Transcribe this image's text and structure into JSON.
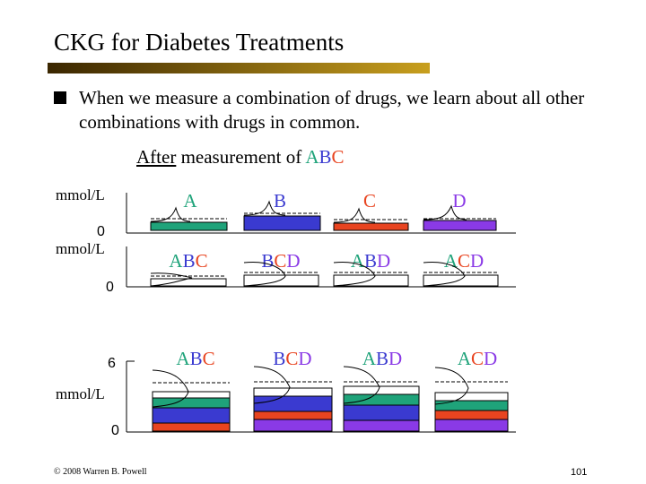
{
  "slide": {
    "title": "CKG for Diabetes Treatments",
    "bullet": "When we measure a combination of drugs, we learn about all other combinations with drugs in common.",
    "caption_after": "After",
    "caption_rest": " measurement of ",
    "caption_letters": [
      {
        "char": "A",
        "color": "#1fa37a"
      },
      {
        "char": "B",
        "color": "#3a3ad0"
      },
      {
        "char": "C",
        "color": "#e84420"
      }
    ],
    "footer": "© 2008 Warren B. Powell",
    "page_number": "101"
  },
  "colors": {
    "A": "#1fa37a",
    "B": "#3a3ad0",
    "C": "#e84420",
    "D": "#8a3ae6"
  },
  "axes": {
    "unit": "mmol/L",
    "zero": "0",
    "six": "6"
  },
  "rows": [
    {
      "name": "singles",
      "labels": [
        "A",
        "B",
        "C",
        "D"
      ]
    },
    {
      "name": "combos",
      "labels": [
        "ABC",
        "BCD",
        "ABD",
        "ACD"
      ]
    },
    {
      "name": "stacked",
      "labels": [
        "ABC",
        "BCD",
        "ABD",
        "ACD"
      ]
    }
  ]
}
